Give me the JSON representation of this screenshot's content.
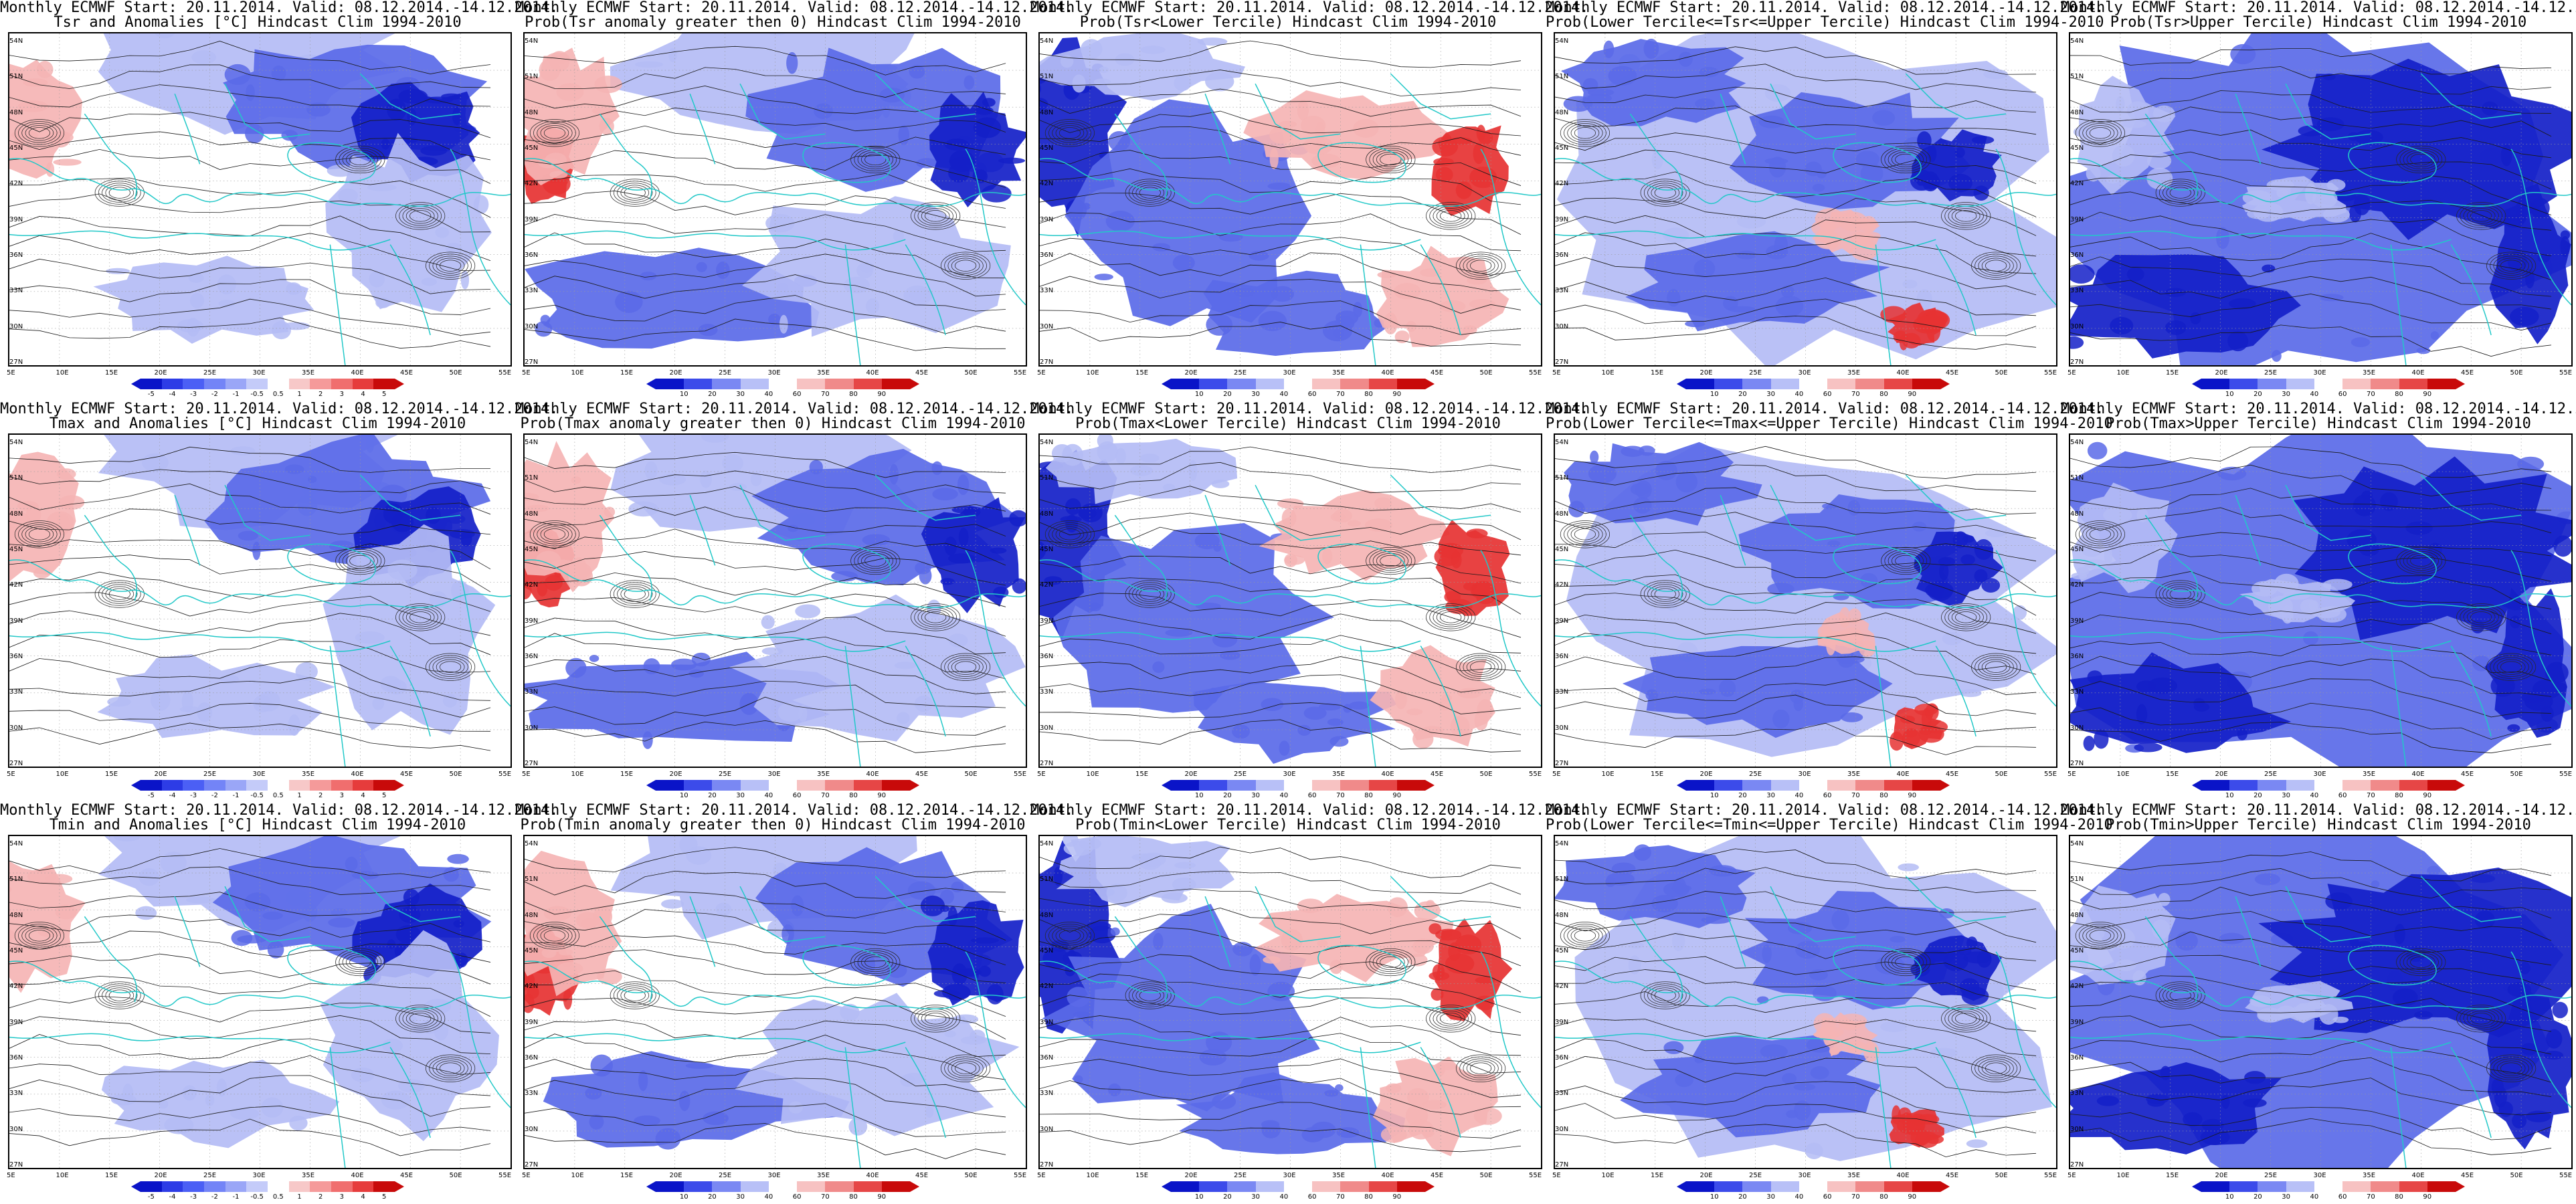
{
  "title_top": "Monthly ECMWF Start: 20.11.2014. Valid: 08.12.2014.-14.12.2014.",
  "panels": [
    {
      "subtitle": "Tsr and Anomalies [°C] Hindcast Clim 1994-2010",
      "type": "anom",
      "cbar": "anomaly"
    },
    {
      "subtitle": "Prob(Tsr anomaly greater then 0) Hindcast Clim 1994-2010",
      "type": "prob_gt0",
      "cbar": "prob"
    },
    {
      "subtitle": "Prob(Tsr<Lower Tercile) Hindcast Clim 1994-2010",
      "type": "lower",
      "cbar": "prob"
    },
    {
      "subtitle": "Prob(Lower Tercile<=Tsr<=Upper Tercile) Hindcast Clim 1994-2010",
      "type": "middle",
      "cbar": "prob"
    },
    {
      "subtitle": "Prob(Tsr>Upper Tercile) Hindcast Clim 1994-2010",
      "type": "upper",
      "cbar": "prob"
    },
    {
      "subtitle": "Tmax and Anomalies [°C] Hindcast Clim 1994-2010",
      "type": "anom",
      "cbar": "anomaly"
    },
    {
      "subtitle": "Prob(Tmax anomaly greater then 0) Hindcast Clim 1994-2010",
      "type": "prob_gt0",
      "cbar": "prob"
    },
    {
      "subtitle": "Prob(Tmax<Lower Tercile) Hindcast Clim 1994-2010",
      "type": "lower",
      "cbar": "prob"
    },
    {
      "subtitle": "Prob(Lower Tercile<=Tmax<=Upper Tercile) Hindcast Clim 1994-2010",
      "type": "middle",
      "cbar": "prob"
    },
    {
      "subtitle": "Prob(Tmax>Upper Tercile) Hindcast Clim 1994-2010",
      "type": "upper",
      "cbar": "prob"
    },
    {
      "subtitle": "Tmin and Anomalies [°C] Hindcast Clim 1994-2010",
      "type": "anom",
      "cbar": "anomaly"
    },
    {
      "subtitle": "Prob(Tmin anomaly greater then 0) Hindcast Clim 1994-2010",
      "type": "prob_gt0",
      "cbar": "prob"
    },
    {
      "subtitle": "Prob(Tmin<Lower Tercile) Hindcast Clim 1994-2010",
      "type": "lower",
      "cbar": "prob"
    },
    {
      "subtitle": "Prob(Lower Tercile<=Tmin<=Upper Tercile) Hindcast Clim 1994-2010",
      "type": "middle",
      "cbar": "prob"
    },
    {
      "subtitle": "Prob(Tmin>Upper Tercile) Hindcast Clim 1994-2010",
      "type": "upper",
      "cbar": "prob"
    }
  ],
  "lat_labels": [
    "54N",
    "51N",
    "48N",
    "45N",
    "42N",
    "39N",
    "36N",
    "33N",
    "30N",
    "27N"
  ],
  "lon_labels": [
    "5E",
    "10E",
    "15E",
    "20E",
    "25E",
    "30E",
    "35E",
    "40E",
    "45E",
    "50E",
    "55E"
  ],
  "colorbars": {
    "anomaly": {
      "ticks": [
        "-5",
        "-4",
        "-3",
        "-2",
        "-1",
        "-0.5",
        "0.5",
        "1",
        "2",
        "3",
        "4",
        "5"
      ],
      "colors": [
        "#0a14c8",
        "#2d3ce6",
        "#4b5ff5",
        "#7384f7",
        "#9aa6f7",
        "#c4cbf9",
        "#ffffff",
        "#f7c8c8",
        "#f59a9a",
        "#f06e6e",
        "#e63c3c",
        "#c80a0a"
      ]
    },
    "prob": {
      "ticks": [
        "10",
        "20",
        "30",
        "40",
        "60",
        "70",
        "80",
        "90"
      ],
      "colors": [
        "#0a14c8",
        "#3c4bea",
        "#7a88f3",
        "#b8c0f7",
        "#ffffff",
        "#f7c2c2",
        "#f08a8a",
        "#e64646",
        "#c80a0a"
      ]
    }
  },
  "colors": {
    "coast": "#22c8c8",
    "contour": "#1a1a1a",
    "strong_blue": "#1420c8",
    "mid_blue": "#5a6ae8",
    "light_blue": "#b4bcf5",
    "light_red": "#f5b4b4",
    "strong_red": "#e63232"
  }
}
